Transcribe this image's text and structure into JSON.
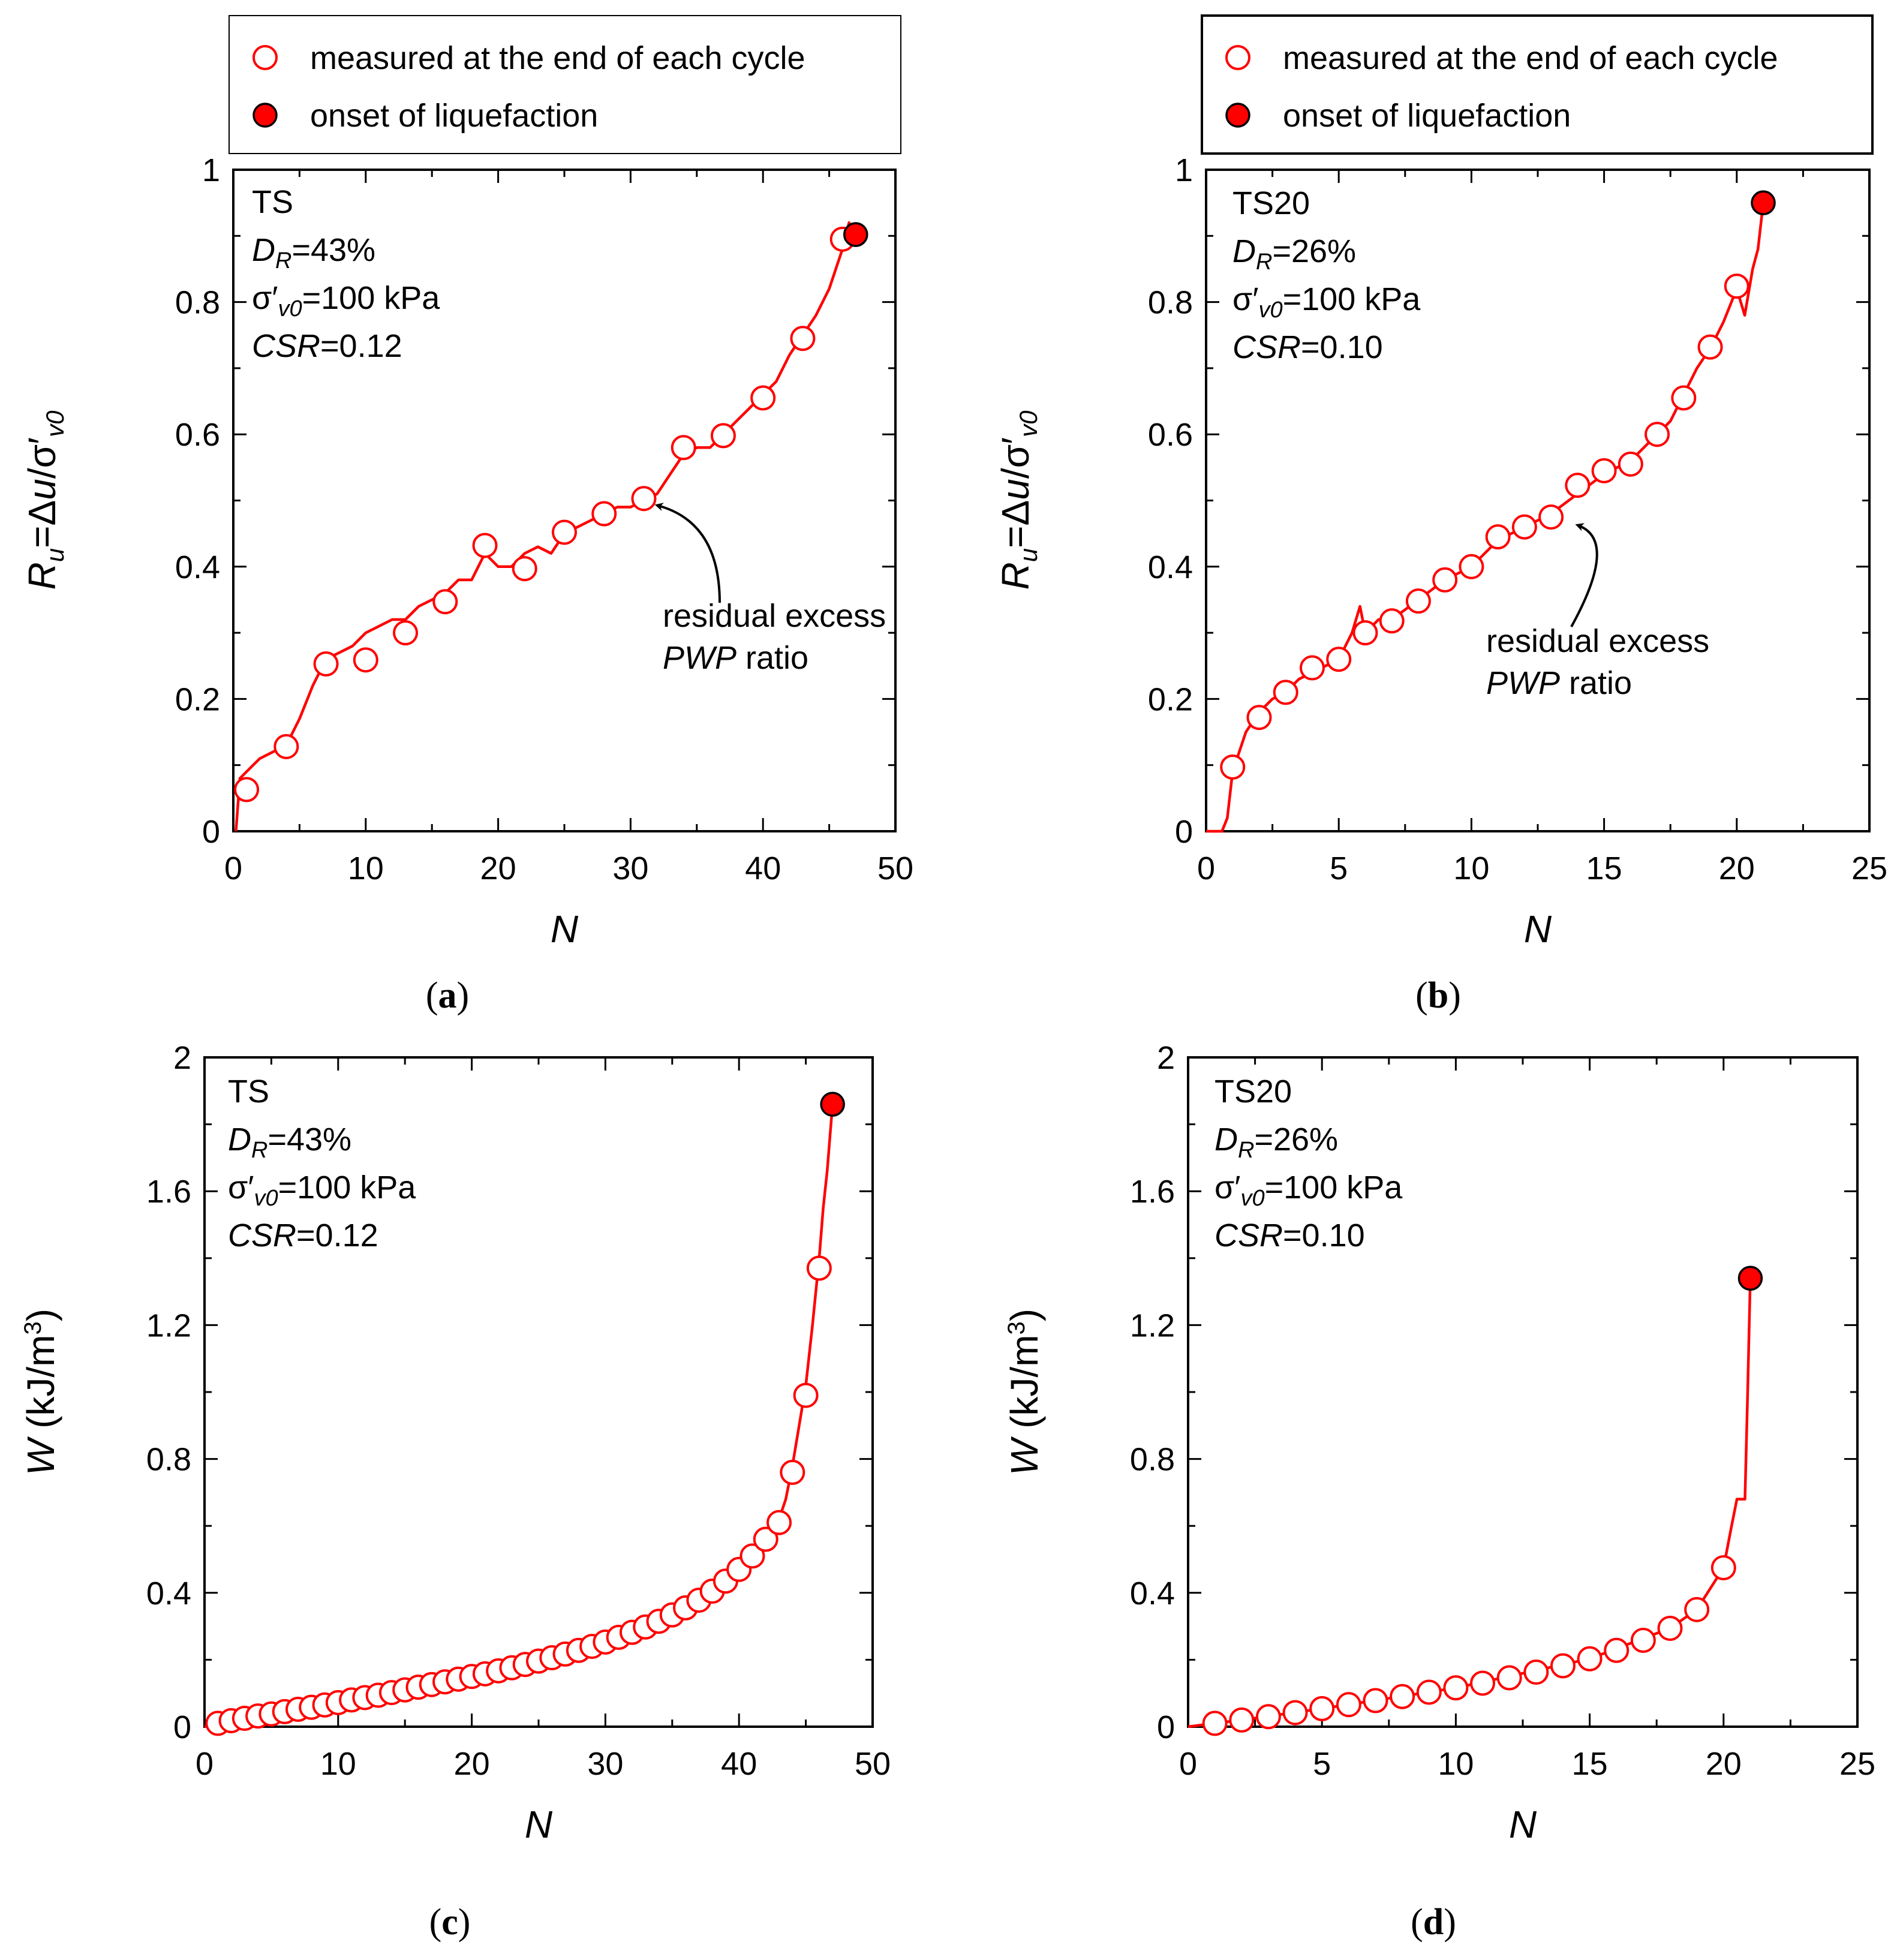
{
  "colors": {
    "series": "#ff0000",
    "marker_fill": "#ffffff",
    "onset_fill": "#ff0000",
    "axis": "#000000"
  },
  "chart_data": [
    {
      "id": "a",
      "type": "line",
      "panel_label": "(a)",
      "xlabel": "N",
      "ylabel": "R_u=Δu/σ'_v0",
      "xlim": [
        0,
        50
      ],
      "ylim": [
        0,
        1
      ],
      "xticks": [
        0,
        10,
        20,
        30,
        40,
        50
      ],
      "yticks": [
        0,
        0.2,
        0.4,
        0.6,
        0.8,
        1
      ],
      "ytick_labels": [
        "0",
        "0.2",
        "0.4",
        "0.6",
        "0.8",
        "1"
      ],
      "legend": {
        "visible": true,
        "placement": "top",
        "items": [
          "measured at the end of each cycle",
          "onset of liquefaction"
        ]
      },
      "info": {
        "line1": "TS",
        "dr_prefix": "D",
        "dr_sub": "R",
        "dr_value": "=43%",
        "sigma_prefix": "σ′",
        "sigma_sub": "v0",
        "sigma_value": "=100 kPa",
        "csr_label": "CSR",
        "csr_value": "=0.12"
      },
      "annotation": {
        "line1": "residual excess",
        "line2_italic": "PWP",
        "line2_rest": " ratio",
        "target_x": 31,
        "target_y": 0.5
      },
      "series": [
        {
          "name": "measured at the end of each cycle",
          "style": "open-marker",
          "x": [
            1,
            4,
            7,
            10,
            13,
            16,
            19,
            22,
            25,
            28,
            31,
            34,
            37,
            40,
            43,
            46
          ],
          "y": [
            0.063,
            0.128,
            0.253,
            0.259,
            0.3,
            0.347,
            0.432,
            0.397,
            0.452,
            0.48,
            0.503,
            0.58,
            0.598,
            0.655,
            0.745,
            0.895
          ]
        },
        {
          "name": "onset of liquefaction",
          "style": "filled-marker",
          "x": [
            47
          ],
          "y": [
            0.902
          ]
        },
        {
          "name": "continuous record",
          "style": "line",
          "x": [
            0.2,
            0.5,
            1,
            1.5,
            2,
            3,
            4,
            5,
            6,
            6.5,
            7,
            8,
            9,
            10,
            11,
            12,
            13,
            14,
            15,
            16,
            17,
            18,
            19,
            20,
            21,
            22,
            23,
            24,
            25,
            26,
            27,
            28,
            29,
            30,
            31,
            32,
            33,
            34,
            35,
            36,
            37,
            38,
            39,
            40,
            41,
            42,
            43,
            44,
            45,
            45.5,
            46,
            46.5,
            47
          ],
          "y": [
            0,
            0.08,
            0.09,
            0.1,
            0.11,
            0.12,
            0.13,
            0.17,
            0.22,
            0.24,
            0.26,
            0.27,
            0.28,
            0.3,
            0.31,
            0.32,
            0.32,
            0.34,
            0.35,
            0.36,
            0.38,
            0.38,
            0.42,
            0.4,
            0.4,
            0.42,
            0.43,
            0.42,
            0.45,
            0.46,
            0.47,
            0.48,
            0.49,
            0.49,
            0.5,
            0.51,
            0.54,
            0.57,
            0.58,
            0.58,
            0.6,
            0.62,
            0.64,
            0.66,
            0.68,
            0.72,
            0.75,
            0.78,
            0.82,
            0.85,
            0.88,
            0.92,
            0.9
          ]
        }
      ]
    },
    {
      "id": "b",
      "type": "line",
      "panel_label": "(b)",
      "xlabel": "N",
      "ylabel": "R_u=Δu/σ'_v0",
      "xlim": [
        0,
        25
      ],
      "ylim": [
        0,
        1
      ],
      "xticks": [
        0,
        5,
        10,
        15,
        20,
        25
      ],
      "yticks": [
        0,
        0.2,
        0.4,
        0.6,
        0.8,
        1
      ],
      "ytick_labels": [
        "0",
        "0.2",
        "0.4",
        "0.6",
        "0.8",
        "1"
      ],
      "legend": {
        "visible": true,
        "placement": "top",
        "items": [
          "measured at the end of each cycle",
          "onset of liquefaction"
        ]
      },
      "info": {
        "line1": "TS20",
        "dr_prefix": "D",
        "dr_sub": "R",
        "dr_value": "=26%",
        "sigma_prefix": "σ′",
        "sigma_sub": "v0",
        "sigma_value": "=100 kPa",
        "csr_label": "CSR",
        "csr_value": "=0.10"
      },
      "annotation": {
        "line1": "residual excess",
        "line2_italic": "PWP",
        "line2_rest": " ratio",
        "target_x": 13.5,
        "target_y": 0.47
      },
      "series": [
        {
          "name": "measured at the end of each cycle",
          "style": "open-marker",
          "x": [
            1,
            2,
            3,
            4,
            5,
            6,
            7,
            8,
            9,
            10,
            11,
            12,
            13,
            14,
            15,
            16,
            17,
            18,
            19,
            20
          ],
          "y": [
            0.097,
            0.172,
            0.21,
            0.247,
            0.26,
            0.3,
            0.318,
            0.348,
            0.38,
            0.4,
            0.445,
            0.46,
            0.475,
            0.523,
            0.545,
            0.555,
            0.6,
            0.655,
            0.732,
            0.824
          ]
        },
        {
          "name": "onset of liquefaction",
          "style": "filled-marker",
          "x": [
            21
          ],
          "y": [
            0.95
          ]
        },
        {
          "name": "continuous record",
          "style": "line",
          "x": [
            0,
            0.6,
            0.8,
            1,
            1.5,
            2,
            2.5,
            3,
            3.5,
            4,
            4.5,
            5,
            5.5,
            5.8,
            6,
            6.5,
            7,
            8,
            9,
            10,
            10.5,
            11,
            12,
            13,
            14,
            15,
            16,
            17,
            17.5,
            18,
            18.5,
            19,
            19.5,
            20,
            20.3,
            20.6,
            20.8,
            21
          ],
          "y": [
            0,
            0,
            0.02,
            0.09,
            0.15,
            0.18,
            0.2,
            0.21,
            0.23,
            0.24,
            0.25,
            0.26,
            0.3,
            0.34,
            0.3,
            0.32,
            0.32,
            0.35,
            0.38,
            0.4,
            0.42,
            0.44,
            0.46,
            0.48,
            0.51,
            0.54,
            0.56,
            0.6,
            0.62,
            0.66,
            0.7,
            0.73,
            0.77,
            0.82,
            0.78,
            0.85,
            0.88,
            0.95
          ]
        }
      ]
    },
    {
      "id": "c",
      "type": "line",
      "panel_label": "(c)",
      "xlabel": "N",
      "ylabel": "W (kJ/m³)",
      "xlim": [
        0,
        50
      ],
      "ylim": [
        0,
        2
      ],
      "xticks": [
        0,
        10,
        20,
        30,
        40,
        50
      ],
      "yticks": [
        0,
        0.4,
        0.8,
        1.2,
        1.6,
        2
      ],
      "ytick_labels": [
        "0",
        "0.4",
        "0.8",
        "1.2",
        "1.6",
        "2"
      ],
      "legend": {
        "visible": false
      },
      "info": {
        "line1": "TS",
        "dr_prefix": "D",
        "dr_sub": "R",
        "dr_value": "=43%",
        "sigma_prefix": "σ′",
        "sigma_sub": "v0",
        "sigma_value": "=100 kPa",
        "csr_label": "CSR",
        "csr_value": "=0.12"
      },
      "series": [
        {
          "name": "measured at the end of each cycle",
          "style": "open-marker",
          "x": [
            1,
            2,
            3,
            4,
            5,
            6,
            7,
            8,
            9,
            10,
            11,
            12,
            13,
            14,
            15,
            16,
            17,
            18,
            19,
            20,
            21,
            22,
            23,
            24,
            25,
            26,
            27,
            28,
            29,
            30,
            31,
            32,
            33,
            34,
            35,
            36,
            37,
            38,
            39,
            40,
            41,
            42,
            43,
            44,
            45,
            46
          ],
          "y": [
            0.01,
            0.018,
            0.025,
            0.032,
            0.038,
            0.045,
            0.052,
            0.058,
            0.065,
            0.072,
            0.08,
            0.087,
            0.094,
            0.102,
            0.11,
            0.118,
            0.126,
            0.134,
            0.142,
            0.15,
            0.158,
            0.167,
            0.176,
            0.186,
            0.196,
            0.206,
            0.217,
            0.228,
            0.24,
            0.253,
            0.267,
            0.282,
            0.298,
            0.315,
            0.334,
            0.355,
            0.378,
            0.405,
            0.435,
            0.47,
            0.51,
            0.56,
            0.61,
            0.76,
            0.99,
            1.37
          ]
        },
        {
          "name": "onset of liquefaction",
          "style": "filled-marker",
          "x": [
            47
          ],
          "y": [
            1.86
          ]
        },
        {
          "name": "continuous record",
          "style": "line",
          "x": [
            0,
            1,
            5,
            10,
            15,
            20,
            25,
            30,
            35,
            38,
            40,
            41,
            42,
            43,
            43.5,
            44,
            44.5,
            45,
            45.5,
            46,
            46.3,
            46.6,
            47
          ],
          "y": [
            0,
            0.01,
            0.038,
            0.072,
            0.11,
            0.15,
            0.196,
            0.253,
            0.334,
            0.405,
            0.47,
            0.51,
            0.56,
            0.62,
            0.68,
            0.78,
            0.9,
            1.02,
            1.2,
            1.4,
            1.55,
            1.66,
            1.86
          ]
        }
      ]
    },
    {
      "id": "d",
      "type": "line",
      "panel_label": "(d)",
      "xlabel": "N",
      "ylabel": "W (kJ/m³)",
      "xlim": [
        0,
        25
      ],
      "ylim": [
        0,
        2
      ],
      "xticks": [
        0,
        5,
        10,
        15,
        20,
        25
      ],
      "yticks": [
        0,
        0.4,
        0.8,
        1.2,
        1.6,
        2
      ],
      "ytick_labels": [
        "0",
        "0.4",
        "0.8",
        "1.2",
        "1.6",
        "2"
      ],
      "legend": {
        "visible": false
      },
      "info": {
        "line1": "TS20",
        "dr_prefix": "D",
        "dr_sub": "R",
        "dr_value": "=26%",
        "sigma_prefix": "σ′",
        "sigma_sub": "v0",
        "sigma_value": "=100 kPa",
        "csr_label": "CSR",
        "csr_value": "=0.10"
      },
      "series": [
        {
          "name": "measured at the end of each cycle",
          "style": "open-marker",
          "x": [
            1,
            2,
            3,
            4,
            5,
            6,
            7,
            8,
            9,
            10,
            11,
            12,
            13,
            14,
            15,
            16,
            17,
            18,
            19,
            20
          ],
          "y": [
            0.01,
            0.02,
            0.03,
            0.042,
            0.054,
            0.066,
            0.078,
            0.09,
            0.103,
            0.116,
            0.13,
            0.146,
            0.163,
            0.182,
            0.203,
            0.228,
            0.258,
            0.294,
            0.35,
            0.475
          ]
        },
        {
          "name": "onset of liquefaction",
          "style": "filled-marker",
          "x": [
            21
          ],
          "y": [
            1.34
          ]
        },
        {
          "name": "continuous record",
          "style": "line",
          "x": [
            0,
            1,
            2,
            5,
            10,
            15,
            18,
            19,
            20,
            20.3,
            20.5,
            20.8,
            20.9,
            21
          ],
          "y": [
            0,
            0.01,
            0.02,
            0.054,
            0.116,
            0.203,
            0.294,
            0.35,
            0.475,
            0.6,
            0.68,
            0.68,
            1.0,
            1.34
          ]
        }
      ]
    }
  ]
}
